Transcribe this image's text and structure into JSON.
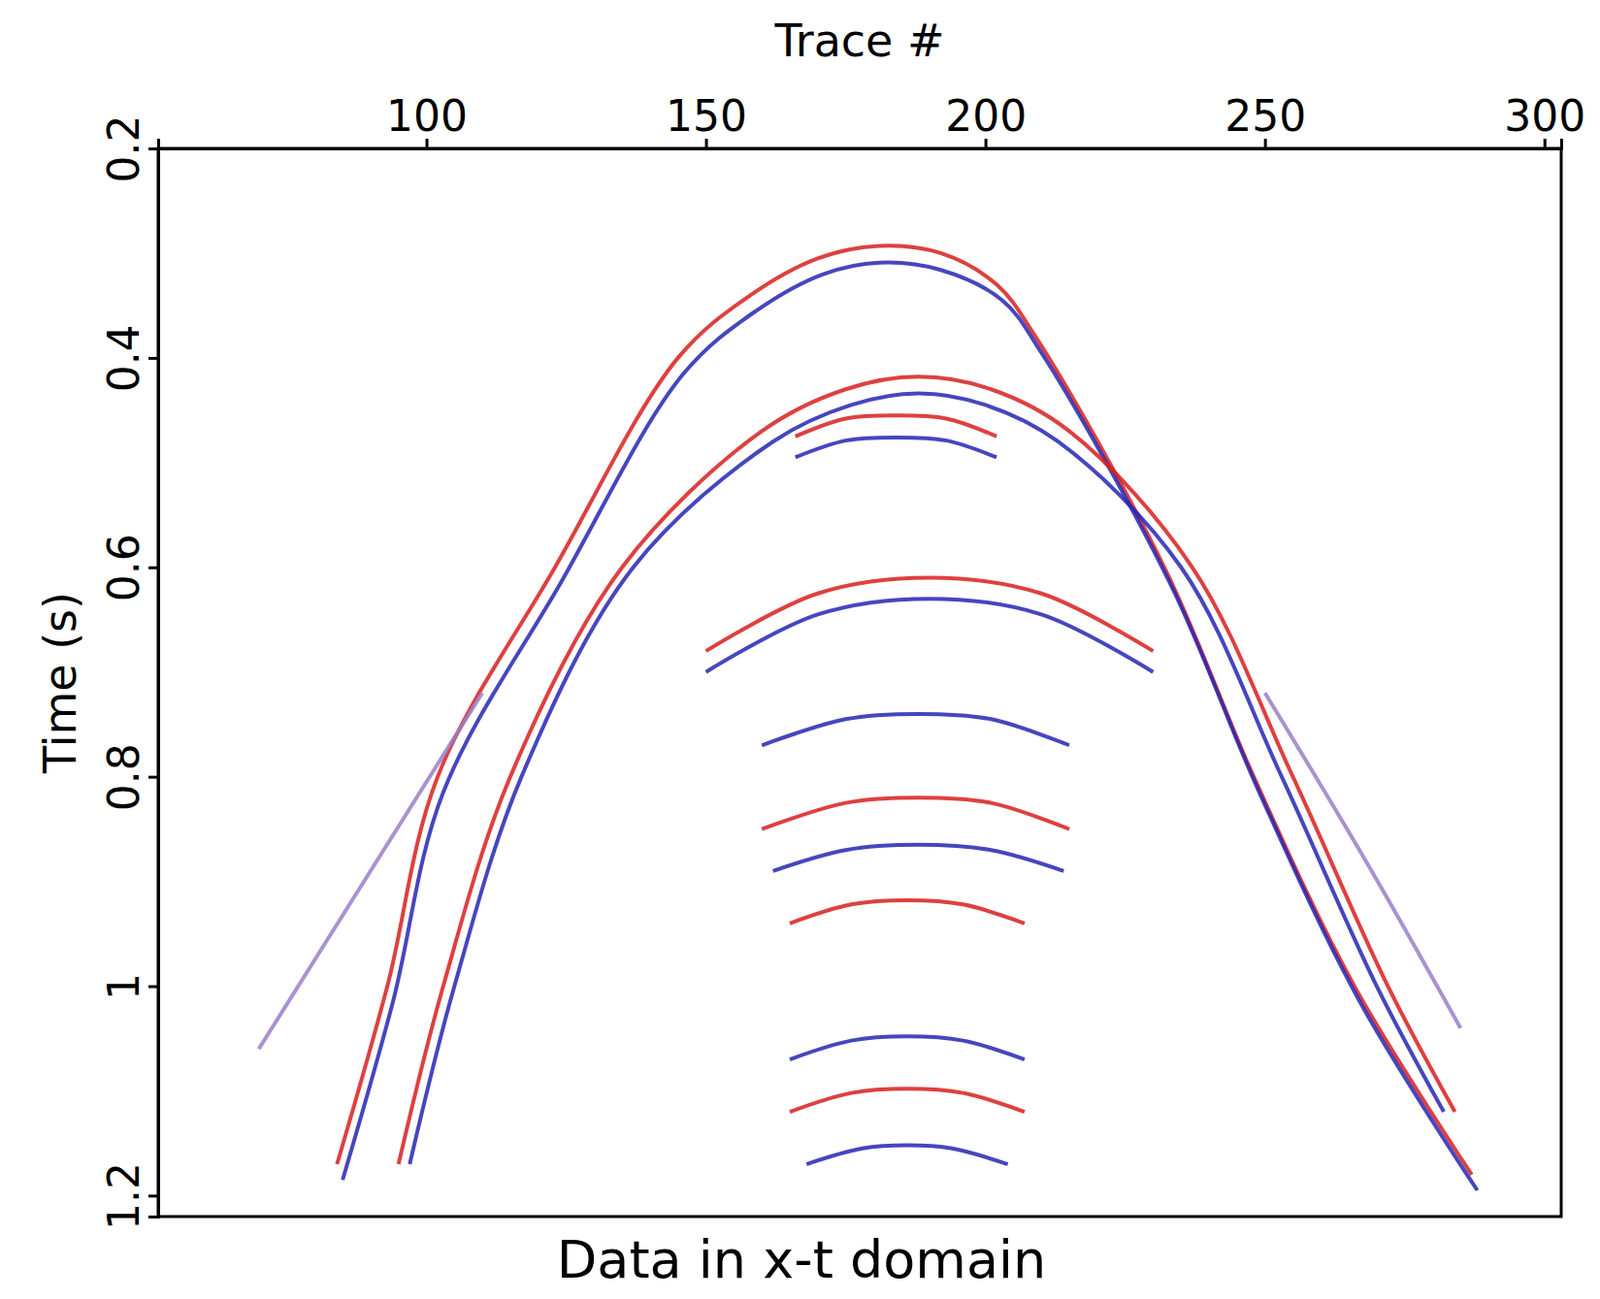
{
  "chart_data": {
    "type": "line",
    "title": "Data in x-t domain",
    "x_label": "Trace #",
    "y_label": "Time (s)",
    "xlim": [
      52,
      303
    ],
    "ylim": [
      0.2,
      1.22
    ],
    "xticks": [
      100,
      150,
      200,
      250,
      300
    ],
    "yticks": [
      0.2,
      0.4,
      0.6,
      0.8,
      1,
      1.2
    ],
    "series": [
      {
        "color": "#d81e1e",
        "x": [
          84,
          93,
          102,
          123,
          145,
          158,
          170,
          181,
          192,
          202,
          209,
          232,
          248,
          266,
          287
        ],
        "values": [
          1.17,
          1.0,
          0.8,
          0.6,
          0.4,
          0.34,
          0.305,
          0.293,
          0.3,
          0.33,
          0.38,
          0.6,
          0.8,
          1.0,
          1.18
        ]
      },
      {
        "color": "#2626b4",
        "x": [
          85,
          94,
          103,
          124,
          146,
          159,
          171,
          181,
          192,
          203,
          210,
          233,
          249,
          267,
          288
        ],
        "values": [
          1.185,
          1.015,
          0.815,
          0.615,
          0.415,
          0.355,
          0.32,
          0.309,
          0.316,
          0.345,
          0.395,
          0.615,
          0.815,
          1.015,
          1.195
        ]
      },
      {
        "color": "#d81e1e",
        "x": [
          95,
          103,
          115,
          135,
          160,
          175,
          188,
          201,
          215,
          237,
          255,
          272,
          284
        ],
        "values": [
          1.17,
          1.0,
          0.8,
          0.6,
          0.47,
          0.43,
          0.418,
          0.43,
          0.47,
          0.6,
          0.8,
          1.0,
          1.12
        ]
      },
      {
        "color": "#2626b4",
        "x": [
          97,
          105,
          117,
          137,
          162,
          176,
          188,
          200,
          213,
          235,
          253,
          270,
          282
        ],
        "values": [
          1.17,
          1.0,
          0.8,
          0.6,
          0.48,
          0.445,
          0.434,
          0.445,
          0.48,
          0.6,
          0.8,
          1.0,
          1.12
        ]
      },
      {
        "color": "#d81e1e",
        "x": [
          166,
          175,
          184,
          193,
          202
        ],
        "values": [
          0.475,
          0.458,
          0.455,
          0.458,
          0.475
        ]
      },
      {
        "color": "#2626b4",
        "x": [
          166,
          175,
          184,
          193,
          202
        ],
        "values": [
          0.495,
          0.479,
          0.476,
          0.479,
          0.495
        ]
      },
      {
        "color": "#d81e1e",
        "x": [
          150,
          170,
          190,
          210,
          230
        ],
        "values": [
          0.68,
          0.625,
          0.61,
          0.625,
          0.68
        ]
      },
      {
        "color": "#2626b4",
        "x": [
          150,
          170,
          190,
          210,
          230
        ],
        "values": [
          0.7,
          0.645,
          0.63,
          0.645,
          0.7
        ]
      },
      {
        "color": "#2626b4",
        "x": [
          160,
          175,
          188,
          201,
          215
        ],
        "values": [
          0.77,
          0.745,
          0.74,
          0.745,
          0.77
        ]
      },
      {
        "color": "#d81e1e",
        "x": [
          160,
          175,
          188,
          201,
          215
        ],
        "values": [
          0.85,
          0.825,
          0.82,
          0.825,
          0.85
        ]
      },
      {
        "color": "#2626b4",
        "x": [
          162,
          175,
          188,
          201,
          214
        ],
        "values": [
          0.89,
          0.87,
          0.865,
          0.87,
          0.89
        ]
      },
      {
        "color": "#d81e1e",
        "x": [
          165,
          176,
          186,
          196,
          207
        ],
        "values": [
          0.94,
          0.922,
          0.918,
          0.922,
          0.94
        ]
      },
      {
        "color": "#2626b4",
        "x": [
          165,
          176,
          186,
          196,
          207
        ],
        "values": [
          1.07,
          1.052,
          1.048,
          1.052,
          1.07
        ]
      },
      {
        "color": "#d81e1e",
        "x": [
          165,
          176,
          186,
          196,
          207
        ],
        "values": [
          1.12,
          1.102,
          1.098,
          1.102,
          1.12
        ]
      },
      {
        "color": "#2626b4",
        "x": [
          168,
          178,
          186,
          194,
          204
        ],
        "values": [
          1.17,
          1.155,
          1.152,
          1.155,
          1.17
        ]
      },
      {
        "color": "#9a7fc8",
        "x": [
          70,
          90,
          110
        ],
        "values": [
          1.06,
          0.89,
          0.72
        ]
      },
      {
        "color": "#9a7fc8",
        "x": [
          250,
          268,
          285
        ],
        "values": [
          0.72,
          0.88,
          1.04
        ]
      }
    ]
  }
}
